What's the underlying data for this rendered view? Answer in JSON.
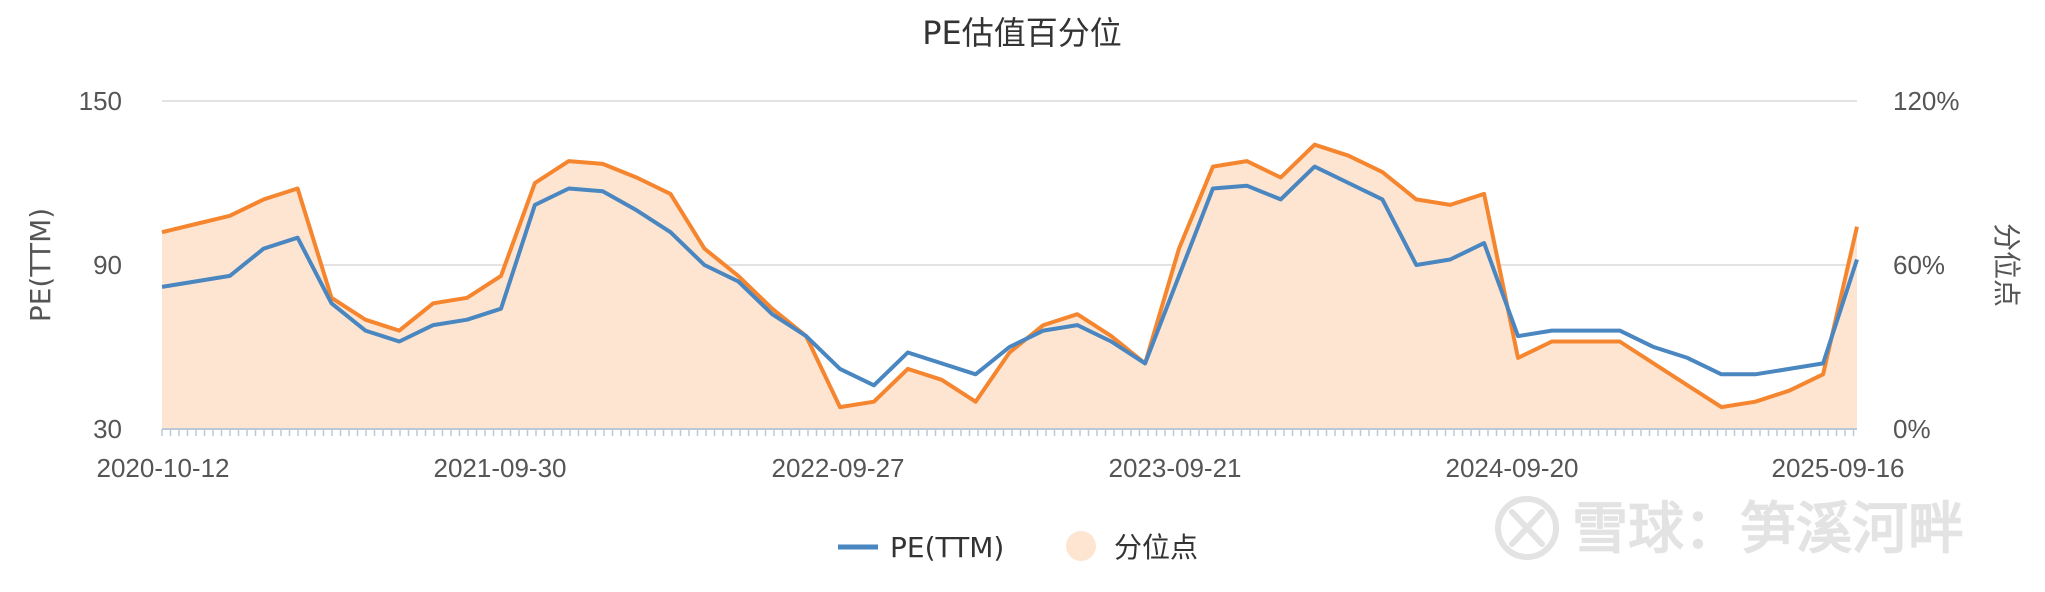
{
  "chart_data": {
    "type": "line",
    "title": "PE估值百分位",
    "ylabel_left": "PE(TTM)",
    "ylabel_right": "分位点",
    "y_left_range": [
      30,
      150
    ],
    "y_left_ticks": [
      "30",
      "90",
      "150"
    ],
    "y_right_range": [
      0,
      120
    ],
    "y_right_ticks": [
      "0%",
      "60%",
      "120%"
    ],
    "x_tick_labels": [
      "2020-10-12",
      "2021-09-30",
      "2022-09-27",
      "2023-09-21",
      "2024-09-20",
      "2025-09-16"
    ],
    "grid": true,
    "legend_position": "bottom",
    "colors": {
      "pe_line": "#4a86c0",
      "percentile_line": "#f5862f",
      "percentile_fill": "#fde5d2",
      "grid": "#e3e3e3"
    },
    "x": [
      "2020-10-12",
      "2020-11-16",
      "2020-12-21",
      "2021-01-25",
      "2021-03-01",
      "2021-04-05",
      "2021-05-10",
      "2021-06-14",
      "2021-07-19",
      "2021-08-23",
      "2021-09-30",
      "2021-11-04",
      "2021-12-09",
      "2022-01-13",
      "2022-02-17",
      "2022-03-24",
      "2022-04-28",
      "2022-06-02",
      "2022-07-07",
      "2022-08-11",
      "2022-09-27",
      "2022-11-01",
      "2022-12-06",
      "2023-01-10",
      "2023-02-14",
      "2023-03-21",
      "2023-04-25",
      "2023-05-30",
      "2023-07-04",
      "2023-08-08",
      "2023-09-21",
      "2023-10-26",
      "2023-11-30",
      "2024-01-04",
      "2024-02-08",
      "2024-03-14",
      "2024-04-18",
      "2024-05-23",
      "2024-06-27",
      "2024-08-01",
      "2024-09-20",
      "2024-10-25",
      "2024-11-29",
      "2025-01-03",
      "2025-02-07",
      "2025-03-14",
      "2025-04-18",
      "2025-05-23",
      "2025-06-27",
      "2025-08-01",
      "2025-09-16"
    ],
    "series": [
      {
        "name": "PE(TTM)",
        "axis": "left",
        "values": [
          82,
          84,
          86,
          96,
          100,
          76,
          66,
          62,
          68,
          70,
          74,
          112,
          118,
          117,
          110,
          102,
          90,
          84,
          72,
          64,
          52,
          46,
          58,
          54,
          50,
          60,
          66,
          68,
          62,
          54,
          86,
          118,
          119,
          114,
          126,
          120,
          114,
          90,
          92,
          98,
          64,
          66,
          66,
          66,
          60,
          56,
          50,
          50,
          52,
          54,
          92
        ]
      },
      {
        "name": "分位点",
        "axis": "right",
        "values": [
          72,
          75,
          78,
          84,
          88,
          48,
          40,
          36,
          46,
          48,
          56,
          90,
          98,
          97,
          92,
          86,
          66,
          56,
          44,
          34,
          8,
          10,
          22,
          18,
          10,
          28,
          38,
          42,
          34,
          24,
          66,
          96,
          98,
          92,
          104,
          100,
          94,
          84,
          82,
          86,
          26,
          32,
          32,
          32,
          24,
          16,
          8,
          10,
          14,
          20,
          74
        ]
      }
    ]
  }
}
